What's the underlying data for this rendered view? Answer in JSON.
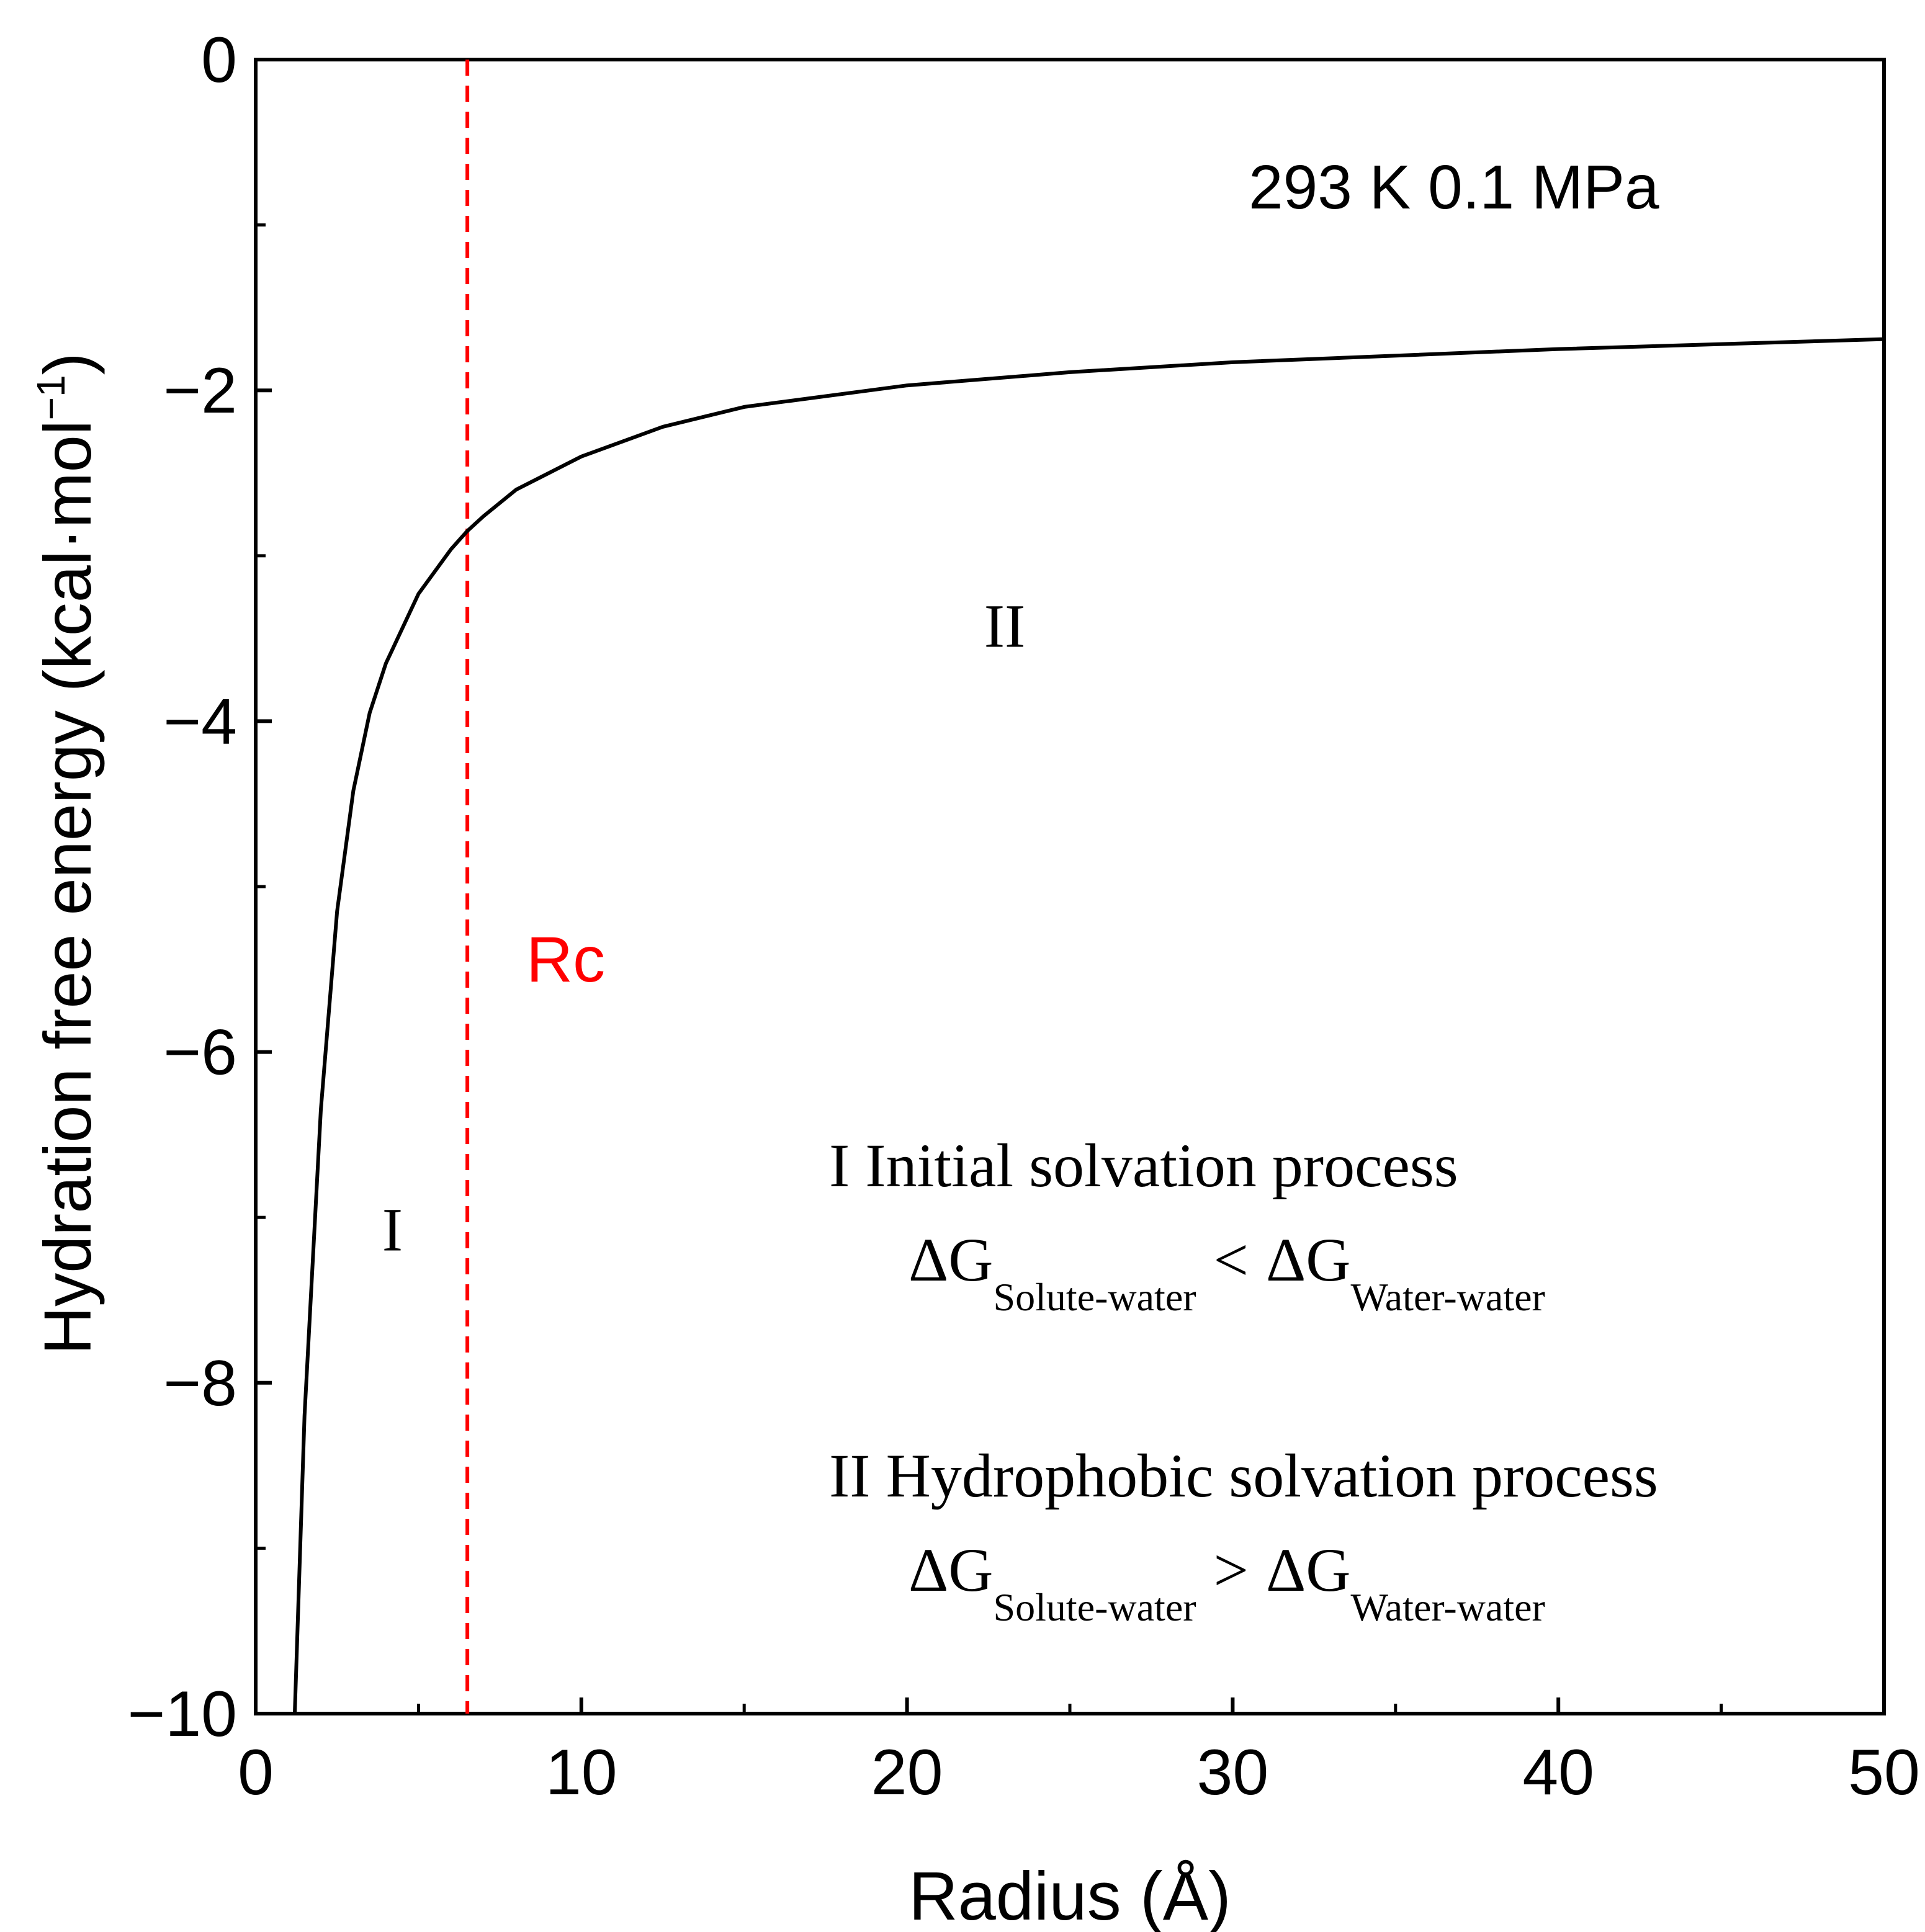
{
  "chart_data": {
    "type": "line",
    "title": "",
    "xlabel": "Radius (Å)",
    "ylabel_main": "Hydration free energy (kcal·mol",
    "ylabel_sup": "−1",
    "ylabel_close": ")",
    "xlim": [
      0,
      50
    ],
    "ylim": [
      -10,
      0
    ],
    "x_ticks": [
      {
        "value": 0,
        "label": "0"
      },
      {
        "value": 10,
        "label": "10"
      },
      {
        "value": 20,
        "label": "20"
      },
      {
        "value": 30,
        "label": "30"
      },
      {
        "value": 40,
        "label": "40"
      },
      {
        "value": 50,
        "label": "50"
      }
    ],
    "x_minor_ticks": [
      5,
      15,
      25,
      35,
      45
    ],
    "y_ticks": [
      {
        "value": 0,
        "label": "0"
      },
      {
        "value": -2,
        "label": "−2"
      },
      {
        "value": -4,
        "label": "−4"
      },
      {
        "value": -6,
        "label": "−6"
      },
      {
        "value": -8,
        "label": "−8"
      },
      {
        "value": -10,
        "label": "−10"
      }
    ],
    "y_minor_ticks": [
      -1,
      -3,
      -5,
      -7,
      -9
    ],
    "grid": false,
    "series": [
      {
        "name": "Hydration free energy",
        "color": "#000000",
        "x": [
          1.2,
          1.5,
          2.0,
          2.5,
          3.0,
          3.5,
          4.0,
          5.0,
          6.0,
          6.5,
          7.0,
          8.0,
          10.0,
          12.5,
          15.0,
          20.0,
          25.0,
          30.0,
          40.0,
          50.0
        ],
        "y": [
          -10.0,
          -8.2,
          -6.35,
          -5.15,
          -4.42,
          -3.95,
          -3.65,
          -3.23,
          -2.96,
          -2.85,
          -2.76,
          -2.6,
          -2.4,
          -2.22,
          -2.1,
          -1.97,
          -1.89,
          -1.83,
          -1.75,
          -1.69
        ]
      }
    ],
    "rc": {
      "label": "Rc",
      "x": 6.5,
      "color": "#ff0000"
    },
    "conditions": "293 K  0.1 MPa",
    "regions": [
      {
        "label": "I",
        "x": 4.2,
        "y": -7.2
      },
      {
        "label": "II",
        "x": 23,
        "y": -3.55
      }
    ],
    "legend": {
      "line1": "I  Initial solvation process",
      "line3": "II Hydrophobic solvation process",
      "delta_g": "ΔG",
      "sub_solute": "Solute-water",
      "sub_water": "Water-water",
      "less_than": "<",
      "greater_than": ">"
    }
  }
}
